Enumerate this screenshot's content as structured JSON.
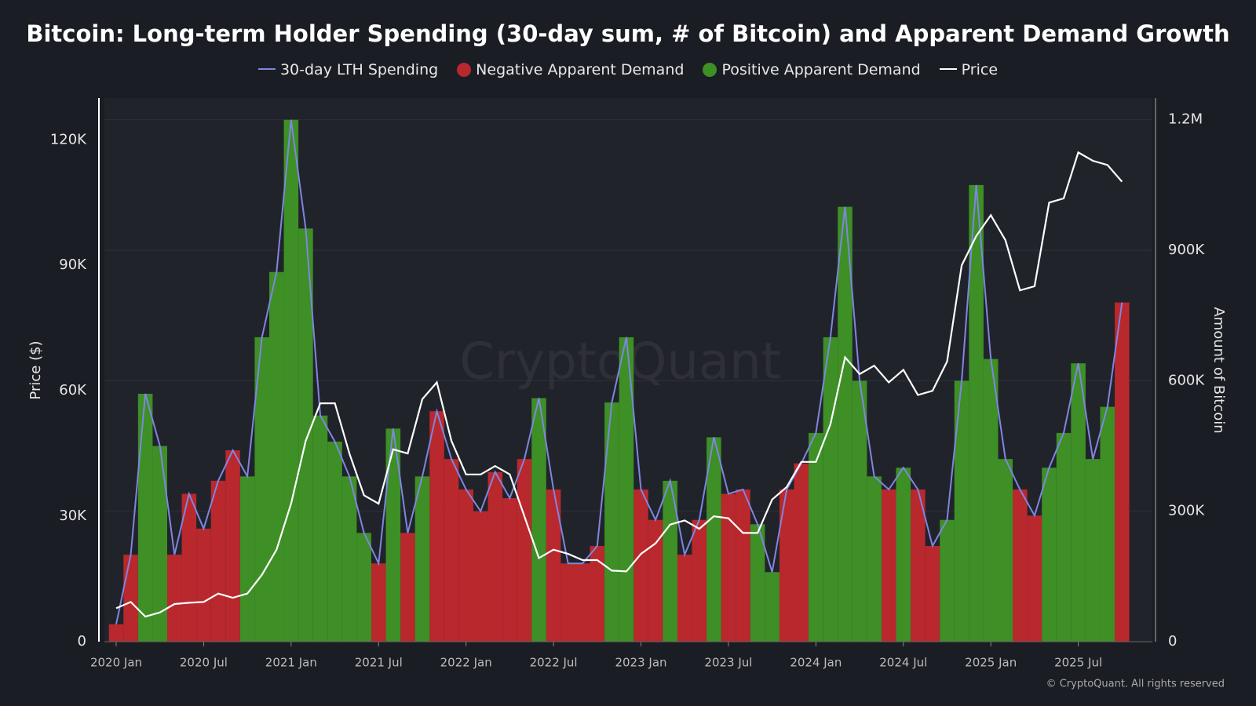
{
  "chart_data": {
    "type": "bar",
    "title": "Bitcoin: Long-term Holder Spending (30-day sum, # of Bitcoin) and Apparent Demand Growth",
    "watermark": "CryptoQuant",
    "copyright": "© CryptoQuant. All rights reserved",
    "ylabel": "Price ($)",
    "y2label": "Amount of Bitcoin",
    "ylim": [
      0,
      130000
    ],
    "yticks": [
      0,
      {
        "value": 30000,
        "label": "30K"
      },
      {
        "value": 60000,
        "label": "60K"
      },
      {
        "value": 90000,
        "label": "90K"
      },
      {
        "value": 120000,
        "label": "120K"
      }
    ],
    "y2lim": [
      0,
      1250000
    ],
    "y2ticks": [
      0,
      {
        "value": 300000,
        "label": "300K"
      },
      {
        "value": 600000,
        "label": "600K"
      },
      {
        "value": 900000,
        "label": "900K"
      },
      {
        "value": 1200000,
        "label": "1.2M"
      }
    ],
    "grid": true,
    "x": [
      "2020-01",
      "2020-02",
      "2020-03",
      "2020-04",
      "2020-05",
      "2020-06",
      "2020-07",
      "2020-08",
      "2020-09",
      "2020-10",
      "2020-11",
      "2020-12",
      "2021-01",
      "2021-02",
      "2021-03",
      "2021-04",
      "2021-05",
      "2021-06",
      "2021-07",
      "2021-08",
      "2021-09",
      "2021-10",
      "2021-11",
      "2021-12",
      "2022-01",
      "2022-02",
      "2022-03",
      "2022-04",
      "2022-05",
      "2022-06",
      "2022-07",
      "2022-08",
      "2022-09",
      "2022-10",
      "2022-11",
      "2022-12",
      "2023-01",
      "2023-02",
      "2023-03",
      "2023-04",
      "2023-05",
      "2023-06",
      "2023-07",
      "2023-08",
      "2023-09",
      "2023-10",
      "2023-11",
      "2023-12",
      "2024-01",
      "2024-02",
      "2024-03",
      "2024-04",
      "2024-05",
      "2024-06",
      "2024-07",
      "2024-08",
      "2024-09",
      "2024-10",
      "2024-11",
      "2024-12",
      "2025-01",
      "2025-02",
      "2025-03",
      "2025-04",
      "2025-05",
      "2025-06",
      "2025-07",
      "2025-08",
      "2025-09",
      "2025-10"
    ],
    "xticks": [
      {
        "value": "2020-01",
        "label": "2020 Jan"
      },
      {
        "value": "2020-07",
        "label": "2020 Jul"
      },
      {
        "value": "2021-01",
        "label": "2021 Jan"
      },
      {
        "value": "2021-07",
        "label": "2021 Jul"
      },
      {
        "value": "2022-01",
        "label": "2022 Jan"
      },
      {
        "value": "2022-07",
        "label": "2022 Jul"
      },
      {
        "value": "2023-01",
        "label": "2023 Jan"
      },
      {
        "value": "2023-07",
        "label": "2023 Jul"
      },
      {
        "value": "2024-01",
        "label": "2024 Jan"
      },
      {
        "value": "2024-07",
        "label": "2024 Jul"
      },
      {
        "value": "2025-01",
        "label": "2025 Jan"
      },
      {
        "value": "2025-07",
        "label": "2025 Jul"
      }
    ],
    "series": [
      {
        "name": "30-day LTH Spending",
        "type": "line",
        "axis": "y2",
        "color": "#7f86e0",
        "values": [
          40000,
          200000,
          570000,
          450000,
          200000,
          340000,
          260000,
          370000,
          440000,
          380000,
          700000,
          850000,
          1200000,
          950000,
          520000,
          460000,
          380000,
          250000,
          180000,
          490000,
          250000,
          380000,
          530000,
          420000,
          350000,
          300000,
          390000,
          330000,
          420000,
          560000,
          350000,
          180000,
          180000,
          220000,
          550000,
          700000,
          350000,
          280000,
          370000,
          200000,
          280000,
          470000,
          340000,
          350000,
          270000,
          160000,
          350000,
          410000,
          480000,
          700000,
          1000000,
          600000,
          380000,
          350000,
          400000,
          350000,
          220000,
          280000,
          600000,
          1050000,
          650000,
          420000,
          350000,
          290000,
          400000,
          480000,
          640000,
          420000,
          540000,
          780000
        ]
      },
      {
        "name": "Negative Apparent Demand",
        "type": "bar",
        "axis": "y2",
        "color": "#b8282c",
        "values": [
          40000,
          200000,
          null,
          null,
          200000,
          340000,
          260000,
          370000,
          440000,
          null,
          null,
          null,
          null,
          null,
          null,
          null,
          null,
          null,
          180000,
          null,
          250000,
          null,
          530000,
          420000,
          350000,
          300000,
          390000,
          330000,
          420000,
          null,
          350000,
          180000,
          180000,
          220000,
          null,
          null,
          350000,
          280000,
          null,
          200000,
          280000,
          null,
          340000,
          350000,
          null,
          null,
          350000,
          410000,
          null,
          null,
          null,
          null,
          null,
          350000,
          null,
          350000,
          220000,
          null,
          null,
          null,
          null,
          null,
          350000,
          290000,
          null,
          null,
          null,
          null,
          null,
          780000
        ]
      },
      {
        "name": "Positive Apparent Demand",
        "type": "bar",
        "axis": "y2",
        "color": "#3d8f26",
        "values": [
          null,
          null,
          570000,
          450000,
          null,
          null,
          null,
          null,
          null,
          380000,
          700000,
          850000,
          1200000,
          950000,
          520000,
          460000,
          380000,
          250000,
          null,
          490000,
          null,
          380000,
          null,
          null,
          null,
          null,
          null,
          null,
          null,
          560000,
          null,
          null,
          null,
          null,
          550000,
          700000,
          null,
          null,
          370000,
          null,
          null,
          470000,
          null,
          null,
          270000,
          160000,
          null,
          null,
          480000,
          700000,
          1000000,
          600000,
          380000,
          null,
          400000,
          null,
          null,
          280000,
          600000,
          1050000,
          650000,
          420000,
          null,
          null,
          400000,
          480000,
          640000,
          420000,
          540000,
          null
        ]
      },
      {
        "name": "Price",
        "type": "line",
        "axis": "y",
        "color": "#ffffff",
        "values": [
          8000,
          9500,
          6000,
          7000,
          9000,
          9300,
          9500,
          11500,
          10500,
          11500,
          16000,
          22000,
          33000,
          48000,
          57000,
          57000,
          45000,
          35000,
          33000,
          46000,
          45000,
          58000,
          62000,
          48000,
          40000,
          40000,
          42000,
          40000,
          30000,
          20000,
          22000,
          21000,
          19500,
          19500,
          17000,
          16800,
          21000,
          23500,
          28000,
          29000,
          27000,
          30000,
          29500,
          26000,
          26000,
          34000,
          37000,
          43000,
          43000,
          52000,
          68000,
          64000,
          66000,
          62000,
          65000,
          59000,
          60000,
          67000,
          90000,
          97000,
          102000,
          96000,
          84000,
          85000,
          105000,
          106000,
          117000,
          115000,
          114000,
          110000
        ]
      }
    ]
  }
}
